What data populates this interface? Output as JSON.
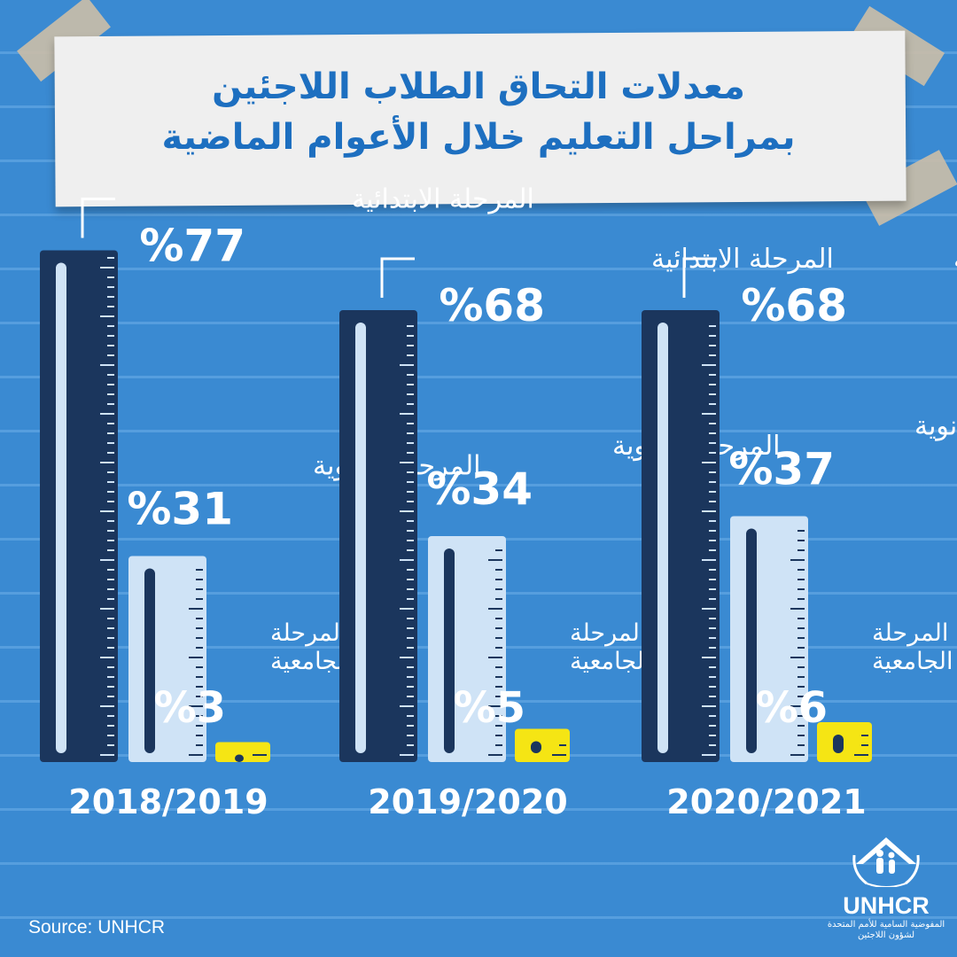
{
  "title": {
    "line1": "معدلات التحاق الطلاب اللاجئين",
    "line2": "بمراحل التعليم خلال الأعوام الماضية"
  },
  "source": "Source: UNHCR",
  "logo": {
    "name": "UNHCR",
    "subtitle_line1": "المفوضية السامية للأمم المتحدة",
    "subtitle_line2": "لشؤون اللاجئين"
  },
  "chart_data": {
    "type": "bar",
    "title": "معدلات التحاق الطلاب اللاجئين بمراحل التعليم خلال الأعوام الماضية",
    "categories": [
      "2018/2019",
      "2019/2020",
      "2020/2021"
    ],
    "series": [
      {
        "name": "المرحلة الابتدائية",
        "values": [
          77,
          68,
          68
        ]
      },
      {
        "name": "المرحلة الثانوية",
        "values": [
          31,
          34,
          37
        ]
      },
      {
        "name": "المرحلة الجامعية",
        "values": [
          3,
          5,
          6
        ]
      }
    ],
    "value_format": "%{v}",
    "colors": {
      "primary": "#1b365d",
      "secondary": "#cfe3f6",
      "tertiary": "#f5e514",
      "background": "#3a8ad2",
      "title": "#1d6fc0"
    }
  }
}
